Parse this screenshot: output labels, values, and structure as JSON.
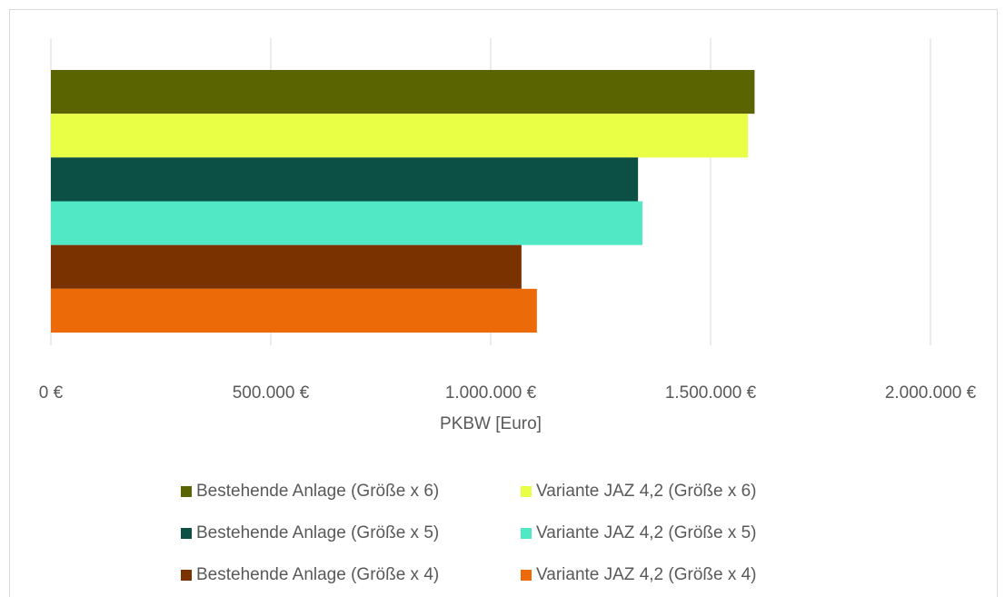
{
  "chart_data": {
    "type": "barh",
    "categories": [
      null
    ],
    "series": [
      {
        "name": "Bestehende Anlage (Größe x 6)",
        "color": "#5a6400",
        "values": [
          1600000
        ]
      },
      {
        "name": "Variante JAZ 4,2 (Größe x 6)",
        "color": "#e8ff45",
        "values": [
          1585000
        ]
      },
      {
        "name": "Bestehende Anlage (Größe x 5)",
        "color": "#0c4f44",
        "values": [
          1335000
        ]
      },
      {
        "name": "Variante JAZ 4,2 (Größe x 5)",
        "color": "#50e8c5",
        "values": [
          1345000
        ]
      },
      {
        "name": "Bestehende Anlage (Größe x 4)",
        "color": "#7a3300",
        "values": [
          1070000
        ]
      },
      {
        "name": "Variante JAZ 4,2 (Größe x 4)",
        "color": "#ec6a08",
        "values": [
          1105000
        ]
      }
    ],
    "x_label": "PKBW [Euro]",
    "xlim": [
      0,
      2000000
    ],
    "xticks": [
      {
        "value": 0,
        "label": "0 €"
      },
      {
        "value": 500000,
        "label": "500.000 €"
      },
      {
        "value": 1000000,
        "label": "1.000.000 €"
      },
      {
        "value": 1500000,
        "label": "1.500.000 €"
      },
      {
        "value": 2000000,
        "label": "2.000.000 €"
      }
    ],
    "grid": true,
    "legend": "bottom"
  }
}
